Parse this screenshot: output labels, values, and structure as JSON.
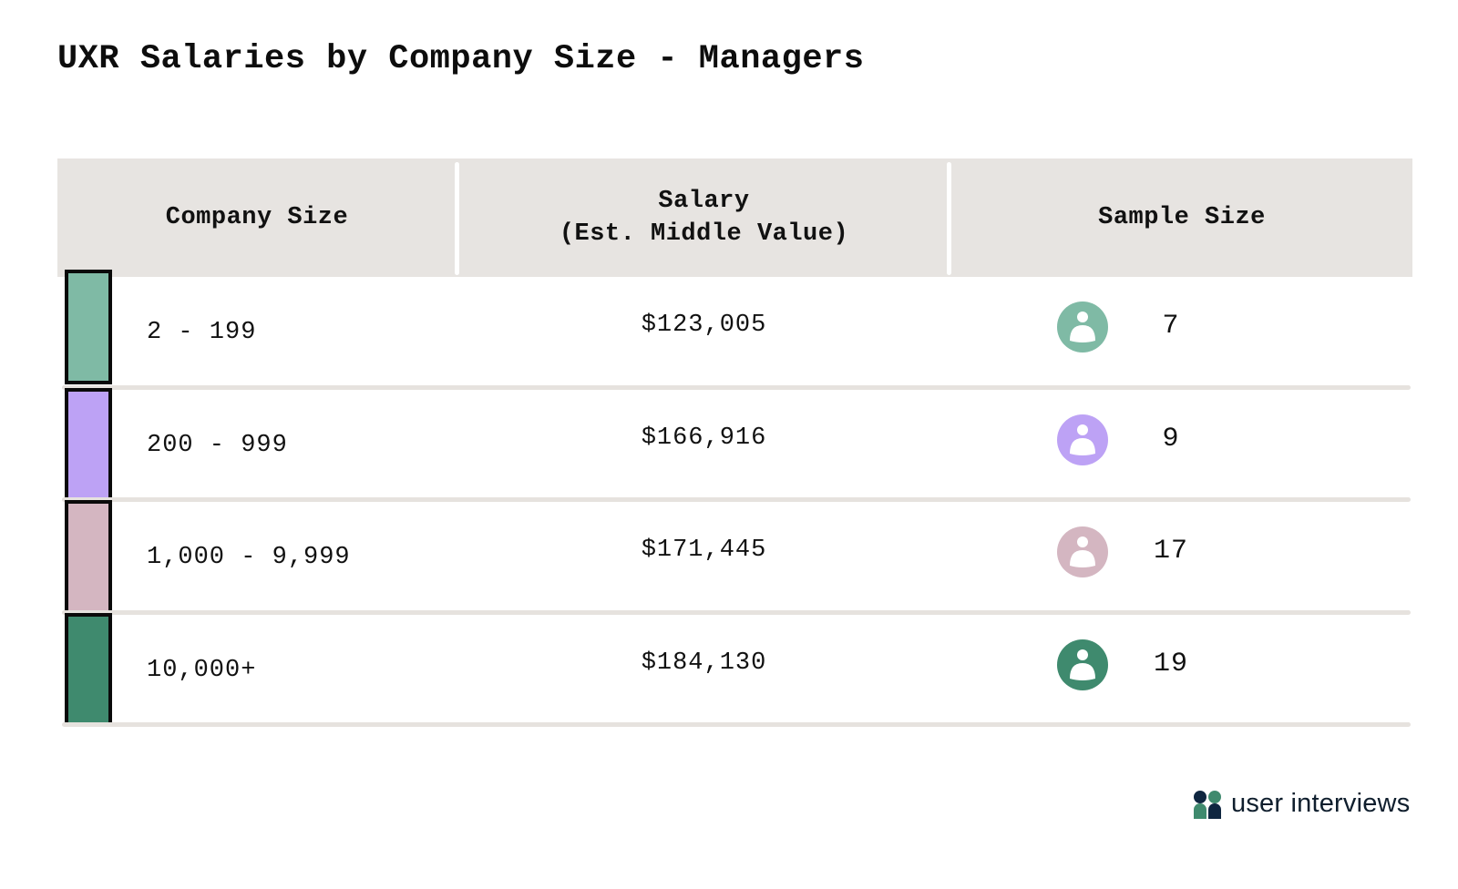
{
  "title": "UXR Salaries by Company Size - Managers",
  "logo": {
    "text": "user interviews",
    "icon": "user-interviews-logo-icon"
  },
  "chart_data": {
    "type": "table",
    "title": "UXR Salaries by Company Size - Managers",
    "columns": [
      "Company Size",
      "Salary\n(Est. Middle Value)",
      "Sample Size"
    ],
    "rows": [
      {
        "company_size": "2 - 199",
        "salary": "$123,005",
        "sample_size": "7",
        "color": "#7fbaa5",
        "icon": "person-icon"
      },
      {
        "company_size": "200 - 999",
        "salary": "$166,916",
        "sample_size": "9",
        "color": "#bda2f5",
        "icon": "person-icon"
      },
      {
        "company_size": "1,000 - 9,999",
        "salary": "$171,445",
        "sample_size": "17",
        "color": "#d4b6c1",
        "icon": "person-icon"
      },
      {
        "company_size": "10,000+",
        "salary": "$184,130",
        "sample_size": "19",
        "color": "#3f8a6e",
        "icon": "person-icon"
      }
    ]
  }
}
